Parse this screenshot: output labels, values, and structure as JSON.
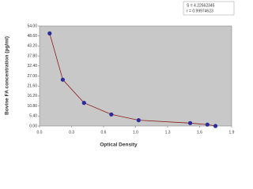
{
  "chart_data": {
    "type": "scatter",
    "x_label": "Optical Density",
    "y_label": "Bovine FA concentration (pg/ml)",
    "annotations": [
      "S = 4.22562345",
      "r = 0.99974623"
    ],
    "x": [
      0.1,
      0.23,
      0.44,
      0.71,
      0.98,
      1.49,
      1.66,
      1.74
    ],
    "series": [
      {
        "color": "#2b2b9c",
        "line_color": "#8b1a1a",
        "values": [
          50,
          25,
          12.5,
          6.25,
          3.12,
          1.56,
          0.78,
          0
        ]
      }
    ],
    "xlim": [
      0,
      1.9
    ],
    "xticks": [
      {
        "value": 0,
        "label": "0.0"
      },
      {
        "value": 0.317,
        "label": "0.3"
      },
      {
        "value": 0.633,
        "label": "0.6"
      },
      {
        "value": 0.95,
        "label": "1.0"
      },
      {
        "value": 1.267,
        "label": "1.3"
      },
      {
        "value": 1.583,
        "label": "1.6"
      },
      {
        "value": 1.9,
        "label": "1.9"
      }
    ],
    "ylim": [
      0,
      54
    ],
    "yticks": [
      {
        "value": 0,
        "label": "0.00"
      },
      {
        "value": 5.4,
        "label": "5.40"
      },
      {
        "value": 10.8,
        "label": "10.80"
      },
      {
        "value": 16.2,
        "label": "16.20"
      },
      {
        "value": 21.6,
        "label": "21.60"
      },
      {
        "value": 27,
        "label": "27.00"
      },
      {
        "value": 32.4,
        "label": "32.40"
      },
      {
        "value": 37.8,
        "label": "37.80"
      },
      {
        "value": 43.2,
        "label": "43.20"
      },
      {
        "value": 48.6,
        "label": "48.60"
      },
      {
        "value": 54,
        "label": "54.00"
      }
    ],
    "plot_background": "#c8c8c8"
  }
}
